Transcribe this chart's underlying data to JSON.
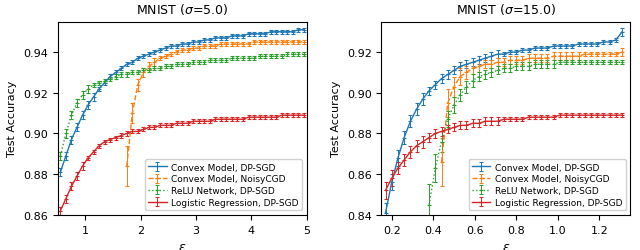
{
  "left": {
    "title": "MNIST ($\\sigma$=5.0)",
    "xlim": [
      0.5,
      5.0
    ],
    "ylim": [
      0.86,
      0.955
    ],
    "xticks": [
      1,
      2,
      3,
      4,
      5
    ],
    "yticks": [
      0.86,
      0.88,
      0.9,
      0.92,
      0.94
    ],
    "series": [
      {
        "label": "Convex Model, DP-SGD",
        "color": "#1f77b4",
        "linestyle": "-",
        "marker": "+",
        "x": [
          0.55,
          0.65,
          0.75,
          0.85,
          0.95,
          1.05,
          1.15,
          1.25,
          1.35,
          1.45,
          1.55,
          1.65,
          1.75,
          1.85,
          1.95,
          2.05,
          2.15,
          2.25,
          2.35,
          2.45,
          2.55,
          2.65,
          2.75,
          2.85,
          2.95,
          3.05,
          3.15,
          3.25,
          3.35,
          3.45,
          3.55,
          3.65,
          3.75,
          3.85,
          3.95,
          4.05,
          4.15,
          4.25,
          4.35,
          4.45,
          4.55,
          4.65,
          4.75,
          4.85,
          4.95
        ],
        "y": [
          0.881,
          0.889,
          0.897,
          0.903,
          0.909,
          0.914,
          0.918,
          0.922,
          0.925,
          0.928,
          0.93,
          0.932,
          0.934,
          0.935,
          0.937,
          0.938,
          0.939,
          0.94,
          0.941,
          0.942,
          0.943,
          0.943,
          0.944,
          0.944,
          0.945,
          0.945,
          0.946,
          0.946,
          0.947,
          0.947,
          0.947,
          0.948,
          0.948,
          0.948,
          0.949,
          0.949,
          0.949,
          0.949,
          0.95,
          0.95,
          0.95,
          0.95,
          0.95,
          0.951,
          0.951
        ],
        "yerr": [
          0.002,
          0.002,
          0.002,
          0.002,
          0.002,
          0.002,
          0.002,
          0.001,
          0.001,
          0.001,
          0.001,
          0.001,
          0.001,
          0.001,
          0.001,
          0.001,
          0.001,
          0.001,
          0.001,
          0.001,
          0.001,
          0.001,
          0.001,
          0.001,
          0.001,
          0.001,
          0.001,
          0.001,
          0.001,
          0.001,
          0.001,
          0.001,
          0.001,
          0.001,
          0.001,
          0.001,
          0.001,
          0.001,
          0.001,
          0.001,
          0.001,
          0.001,
          0.001,
          0.001,
          0.001
        ]
      },
      {
        "label": "Convex Model, NoisyCGD",
        "color": "#ff7f0e",
        "linestyle": "--",
        "marker": "+",
        "x": [
          1.75,
          1.85,
          1.95,
          2.05,
          2.15,
          2.25,
          2.35,
          2.45,
          2.55,
          2.65,
          2.75,
          2.85,
          2.95,
          3.05,
          3.15,
          3.25,
          3.35,
          3.45,
          3.55,
          3.65,
          3.75,
          3.85,
          3.95,
          4.05,
          4.15,
          4.25,
          4.35,
          4.45,
          4.55,
          4.65,
          4.75,
          4.85,
          4.95
        ],
        "y": [
          0.884,
          0.91,
          0.924,
          0.93,
          0.933,
          0.935,
          0.937,
          0.938,
          0.939,
          0.94,
          0.941,
          0.941,
          0.942,
          0.942,
          0.943,
          0.943,
          0.943,
          0.944,
          0.944,
          0.944,
          0.944,
          0.944,
          0.944,
          0.945,
          0.945,
          0.945,
          0.945,
          0.945,
          0.945,
          0.945,
          0.945,
          0.945,
          0.945
        ],
        "yerr": [
          0.01,
          0.005,
          0.003,
          0.002,
          0.002,
          0.002,
          0.001,
          0.001,
          0.001,
          0.001,
          0.001,
          0.001,
          0.001,
          0.001,
          0.001,
          0.001,
          0.001,
          0.001,
          0.001,
          0.001,
          0.001,
          0.001,
          0.001,
          0.001,
          0.001,
          0.001,
          0.001,
          0.001,
          0.001,
          0.001,
          0.001,
          0.001,
          0.001
        ]
      },
      {
        "label": "ReLU Network, DP-SGD",
        "color": "#2ca02c",
        "linestyle": ":",
        "marker": "+",
        "x": [
          0.55,
          0.65,
          0.75,
          0.85,
          0.95,
          1.05,
          1.15,
          1.25,
          1.35,
          1.45,
          1.55,
          1.65,
          1.75,
          1.85,
          1.95,
          2.05,
          2.15,
          2.25,
          2.35,
          2.45,
          2.55,
          2.65,
          2.75,
          2.85,
          2.95,
          3.05,
          3.15,
          3.25,
          3.35,
          3.45,
          3.55,
          3.65,
          3.75,
          3.85,
          3.95,
          4.05,
          4.15,
          4.25,
          4.35,
          4.45,
          4.55,
          4.65,
          4.75,
          4.85,
          4.95
        ],
        "y": [
          0.889,
          0.9,
          0.909,
          0.915,
          0.919,
          0.922,
          0.924,
          0.925,
          0.926,
          0.927,
          0.928,
          0.929,
          0.929,
          0.93,
          0.93,
          0.931,
          0.931,
          0.932,
          0.932,
          0.933,
          0.933,
          0.934,
          0.934,
          0.934,
          0.935,
          0.935,
          0.935,
          0.936,
          0.936,
          0.936,
          0.936,
          0.937,
          0.937,
          0.937,
          0.937,
          0.937,
          0.938,
          0.938,
          0.938,
          0.938,
          0.938,
          0.939,
          0.939,
          0.939,
          0.939
        ],
        "yerr": [
          0.002,
          0.002,
          0.002,
          0.002,
          0.002,
          0.002,
          0.001,
          0.001,
          0.001,
          0.001,
          0.001,
          0.001,
          0.001,
          0.001,
          0.001,
          0.001,
          0.001,
          0.001,
          0.001,
          0.001,
          0.001,
          0.001,
          0.001,
          0.001,
          0.001,
          0.001,
          0.001,
          0.001,
          0.001,
          0.001,
          0.001,
          0.001,
          0.001,
          0.001,
          0.001,
          0.001,
          0.001,
          0.001,
          0.001,
          0.001,
          0.001,
          0.001,
          0.001,
          0.001,
          0.001
        ]
      },
      {
        "label": "Logistic Regression, DP-SGD",
        "color": "#d62728",
        "linestyle": "-",
        "marker": "+",
        "x": [
          0.55,
          0.65,
          0.75,
          0.85,
          0.95,
          1.05,
          1.15,
          1.25,
          1.35,
          1.45,
          1.55,
          1.65,
          1.75,
          1.85,
          1.95,
          2.05,
          2.15,
          2.25,
          2.35,
          2.45,
          2.55,
          2.65,
          2.75,
          2.85,
          2.95,
          3.05,
          3.15,
          3.25,
          3.35,
          3.45,
          3.55,
          3.65,
          3.75,
          3.85,
          3.95,
          4.05,
          4.15,
          4.25,
          4.35,
          4.45,
          4.55,
          4.65,
          4.75,
          4.85,
          4.95
        ],
        "y": [
          0.862,
          0.868,
          0.874,
          0.879,
          0.884,
          0.888,
          0.891,
          0.894,
          0.896,
          0.897,
          0.898,
          0.899,
          0.9,
          0.901,
          0.901,
          0.902,
          0.903,
          0.903,
          0.904,
          0.904,
          0.904,
          0.905,
          0.905,
          0.905,
          0.906,
          0.906,
          0.906,
          0.906,
          0.907,
          0.907,
          0.907,
          0.907,
          0.907,
          0.907,
          0.908,
          0.908,
          0.908,
          0.908,
          0.908,
          0.908,
          0.909,
          0.909,
          0.909,
          0.909,
          0.909
        ],
        "yerr": [
          0.002,
          0.002,
          0.002,
          0.002,
          0.002,
          0.001,
          0.001,
          0.001,
          0.001,
          0.001,
          0.001,
          0.001,
          0.001,
          0.001,
          0.001,
          0.001,
          0.001,
          0.001,
          0.001,
          0.001,
          0.001,
          0.001,
          0.001,
          0.001,
          0.001,
          0.001,
          0.001,
          0.001,
          0.001,
          0.001,
          0.001,
          0.001,
          0.001,
          0.001,
          0.001,
          0.001,
          0.001,
          0.001,
          0.001,
          0.001,
          0.001,
          0.001,
          0.001,
          0.001,
          0.001
        ]
      }
    ]
  },
  "right": {
    "title": "MNIST ($\\sigma$=15.0)",
    "xlim": [
      0.15,
      1.35
    ],
    "ylim": [
      0.84,
      0.935
    ],
    "xticks": [
      0.2,
      0.4,
      0.6,
      0.8,
      1.0,
      1.2
    ],
    "yticks": [
      0.84,
      0.86,
      0.88,
      0.9,
      0.92
    ],
    "series": [
      {
        "label": "Convex Model, DP-SGD",
        "color": "#1f77b4",
        "linestyle": "-",
        "marker": "+",
        "x": [
          0.17,
          0.2,
          0.23,
          0.26,
          0.29,
          0.32,
          0.35,
          0.38,
          0.41,
          0.44,
          0.47,
          0.5,
          0.53,
          0.56,
          0.59,
          0.62,
          0.65,
          0.68,
          0.71,
          0.74,
          0.77,
          0.8,
          0.83,
          0.86,
          0.89,
          0.92,
          0.95,
          0.98,
          1.01,
          1.04,
          1.07,
          1.1,
          1.13,
          1.16,
          1.19,
          1.22,
          1.25,
          1.28,
          1.31
        ],
        "y": [
          0.841,
          0.856,
          0.868,
          0.878,
          0.886,
          0.892,
          0.897,
          0.901,
          0.904,
          0.907,
          0.909,
          0.911,
          0.913,
          0.914,
          0.915,
          0.916,
          0.917,
          0.918,
          0.919,
          0.919,
          0.92,
          0.92,
          0.921,
          0.921,
          0.922,
          0.922,
          0.922,
          0.923,
          0.923,
          0.923,
          0.923,
          0.924,
          0.924,
          0.924,
          0.924,
          0.925,
          0.925,
          0.926,
          0.93
        ],
        "yerr": [
          0.005,
          0.004,
          0.004,
          0.003,
          0.003,
          0.003,
          0.003,
          0.002,
          0.002,
          0.002,
          0.002,
          0.002,
          0.002,
          0.002,
          0.002,
          0.002,
          0.002,
          0.002,
          0.002,
          0.001,
          0.001,
          0.001,
          0.001,
          0.001,
          0.001,
          0.001,
          0.001,
          0.001,
          0.001,
          0.001,
          0.001,
          0.001,
          0.001,
          0.001,
          0.001,
          0.001,
          0.001,
          0.001,
          0.002
        ]
      },
      {
        "label": "Convex Model, NoisyCGD",
        "color": "#ff7f0e",
        "linestyle": "--",
        "marker": "+",
        "x": [
          0.44,
          0.47,
          0.5,
          0.53,
          0.56,
          0.59,
          0.62,
          0.65,
          0.68,
          0.71,
          0.74,
          0.77,
          0.8,
          0.83,
          0.86,
          0.89,
          0.92,
          0.95,
          0.98,
          1.01,
          1.04,
          1.07,
          1.1,
          1.13,
          1.16,
          1.19,
          1.22,
          1.25,
          1.28,
          1.31
        ],
        "y": [
          0.866,
          0.895,
          0.903,
          0.908,
          0.91,
          0.912,
          0.913,
          0.914,
          0.914,
          0.915,
          0.915,
          0.916,
          0.916,
          0.916,
          0.917,
          0.917,
          0.917,
          0.917,
          0.918,
          0.918,
          0.918,
          0.918,
          0.918,
          0.919,
          0.919,
          0.919,
          0.919,
          0.919,
          0.919,
          0.92
        ],
        "yerr": [
          0.012,
          0.007,
          0.005,
          0.004,
          0.003,
          0.003,
          0.003,
          0.002,
          0.002,
          0.002,
          0.002,
          0.002,
          0.002,
          0.002,
          0.002,
          0.002,
          0.002,
          0.002,
          0.002,
          0.002,
          0.002,
          0.002,
          0.002,
          0.001,
          0.001,
          0.001,
          0.001,
          0.001,
          0.001,
          0.002
        ]
      },
      {
        "label": "ReLU Network, DP-SGD",
        "color": "#2ca02c",
        "linestyle": ":",
        "marker": "+",
        "x": [
          0.38,
          0.41,
          0.44,
          0.47,
          0.5,
          0.53,
          0.56,
          0.59,
          0.62,
          0.65,
          0.68,
          0.71,
          0.74,
          0.77,
          0.8,
          0.83,
          0.86,
          0.89,
          0.92,
          0.95,
          0.98,
          1.01,
          1.04,
          1.07,
          1.1,
          1.13,
          1.16,
          1.19,
          1.22,
          1.25,
          1.28,
          1.31
        ],
        "y": [
          0.845,
          0.863,
          0.876,
          0.887,
          0.894,
          0.899,
          0.903,
          0.906,
          0.908,
          0.909,
          0.91,
          0.911,
          0.912,
          0.912,
          0.913,
          0.913,
          0.913,
          0.914,
          0.914,
          0.914,
          0.914,
          0.915,
          0.915,
          0.915,
          0.915,
          0.915,
          0.915,
          0.915,
          0.915,
          0.915,
          0.915,
          0.915
        ],
        "yerr": [
          0.01,
          0.007,
          0.005,
          0.004,
          0.004,
          0.003,
          0.003,
          0.003,
          0.002,
          0.002,
          0.002,
          0.002,
          0.002,
          0.002,
          0.002,
          0.002,
          0.002,
          0.002,
          0.002,
          0.002,
          0.002,
          0.001,
          0.001,
          0.001,
          0.001,
          0.001,
          0.001,
          0.001,
          0.001,
          0.001,
          0.001,
          0.001
        ]
      },
      {
        "label": "Logistic Regression, DP-SGD",
        "color": "#d62728",
        "linestyle": "-",
        "marker": "+",
        "x": [
          0.17,
          0.2,
          0.23,
          0.26,
          0.29,
          0.32,
          0.35,
          0.38,
          0.41,
          0.44,
          0.47,
          0.5,
          0.53,
          0.56,
          0.59,
          0.62,
          0.65,
          0.68,
          0.71,
          0.74,
          0.77,
          0.8,
          0.83,
          0.86,
          0.89,
          0.92,
          0.95,
          0.98,
          1.01,
          1.04,
          1.07,
          1.1,
          1.13,
          1.16,
          1.19,
          1.22,
          1.25,
          1.28,
          1.31
        ],
        "y": [
          0.852,
          0.858,
          0.863,
          0.867,
          0.871,
          0.874,
          0.876,
          0.878,
          0.88,
          0.881,
          0.882,
          0.883,
          0.884,
          0.884,
          0.885,
          0.885,
          0.886,
          0.886,
          0.886,
          0.887,
          0.887,
          0.887,
          0.887,
          0.888,
          0.888,
          0.888,
          0.888,
          0.888,
          0.889,
          0.889,
          0.889,
          0.889,
          0.889,
          0.889,
          0.889,
          0.889,
          0.889,
          0.889,
          0.889
        ],
        "yerr": [
          0.004,
          0.004,
          0.003,
          0.003,
          0.003,
          0.003,
          0.003,
          0.002,
          0.002,
          0.002,
          0.002,
          0.002,
          0.002,
          0.002,
          0.002,
          0.002,
          0.002,
          0.002,
          0.002,
          0.001,
          0.001,
          0.001,
          0.001,
          0.001,
          0.001,
          0.001,
          0.001,
          0.001,
          0.001,
          0.001,
          0.001,
          0.001,
          0.001,
          0.001,
          0.001,
          0.001,
          0.001,
          0.001,
          0.001
        ]
      }
    ]
  },
  "xlabel": "$\\varepsilon$",
  "ylabel": "Test Accuracy",
  "legend_loc": "lower right",
  "capsize": 1.5,
  "markersize": 3,
  "linewidth": 1.0,
  "errorbar_linewidth": 0.7,
  "font_size": 8,
  "title_font_size": 9
}
